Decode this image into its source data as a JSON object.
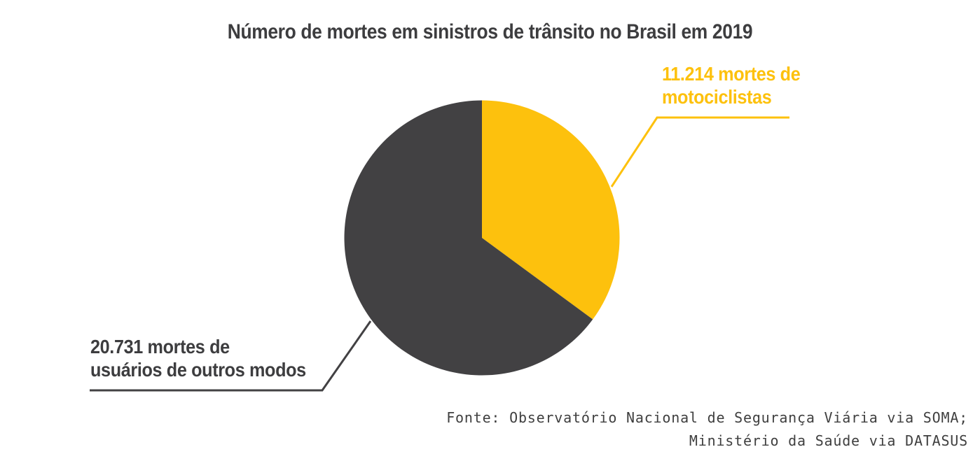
{
  "title": "Número de mortes em sinistros de trânsito no Brasil em 2019",
  "chart_data": {
    "type": "pie",
    "title": "Número de mortes em sinistros de trânsito no Brasil em 2019",
    "start_angle_deg": 0,
    "direction": "clockwise-from-top",
    "legend_position": "callout-labels",
    "slices": [
      {
        "id": "motociclistas",
        "label": "11.214 mortes de motociclistas",
        "value": 11214,
        "display_value": "11.214",
        "color": "#FDC10D"
      },
      {
        "id": "outros-modos",
        "label": "20.731 mortes de usuários de outros modos",
        "value": 20731,
        "display_value": "20.731",
        "color": "#424143"
      }
    ]
  },
  "callouts": {
    "motociclistas": {
      "line1": "11.214 mortes de",
      "line2": "motociclistas"
    },
    "outros_modos": {
      "line1": "20.731 mortes de",
      "line2": "usuários de outros modos"
    }
  },
  "source": {
    "line1": "Fonte: Observatório Nacional de Segurança Viária via SOMA;",
    "line2": "Ministério da Saúde via DATASUS"
  },
  "colors": {
    "accent_yellow": "#FDC10D",
    "dark": "#424143",
    "title_text": "#3D3D3F",
    "source_text": "#3F3F3F",
    "background": "#FFFFFF"
  }
}
